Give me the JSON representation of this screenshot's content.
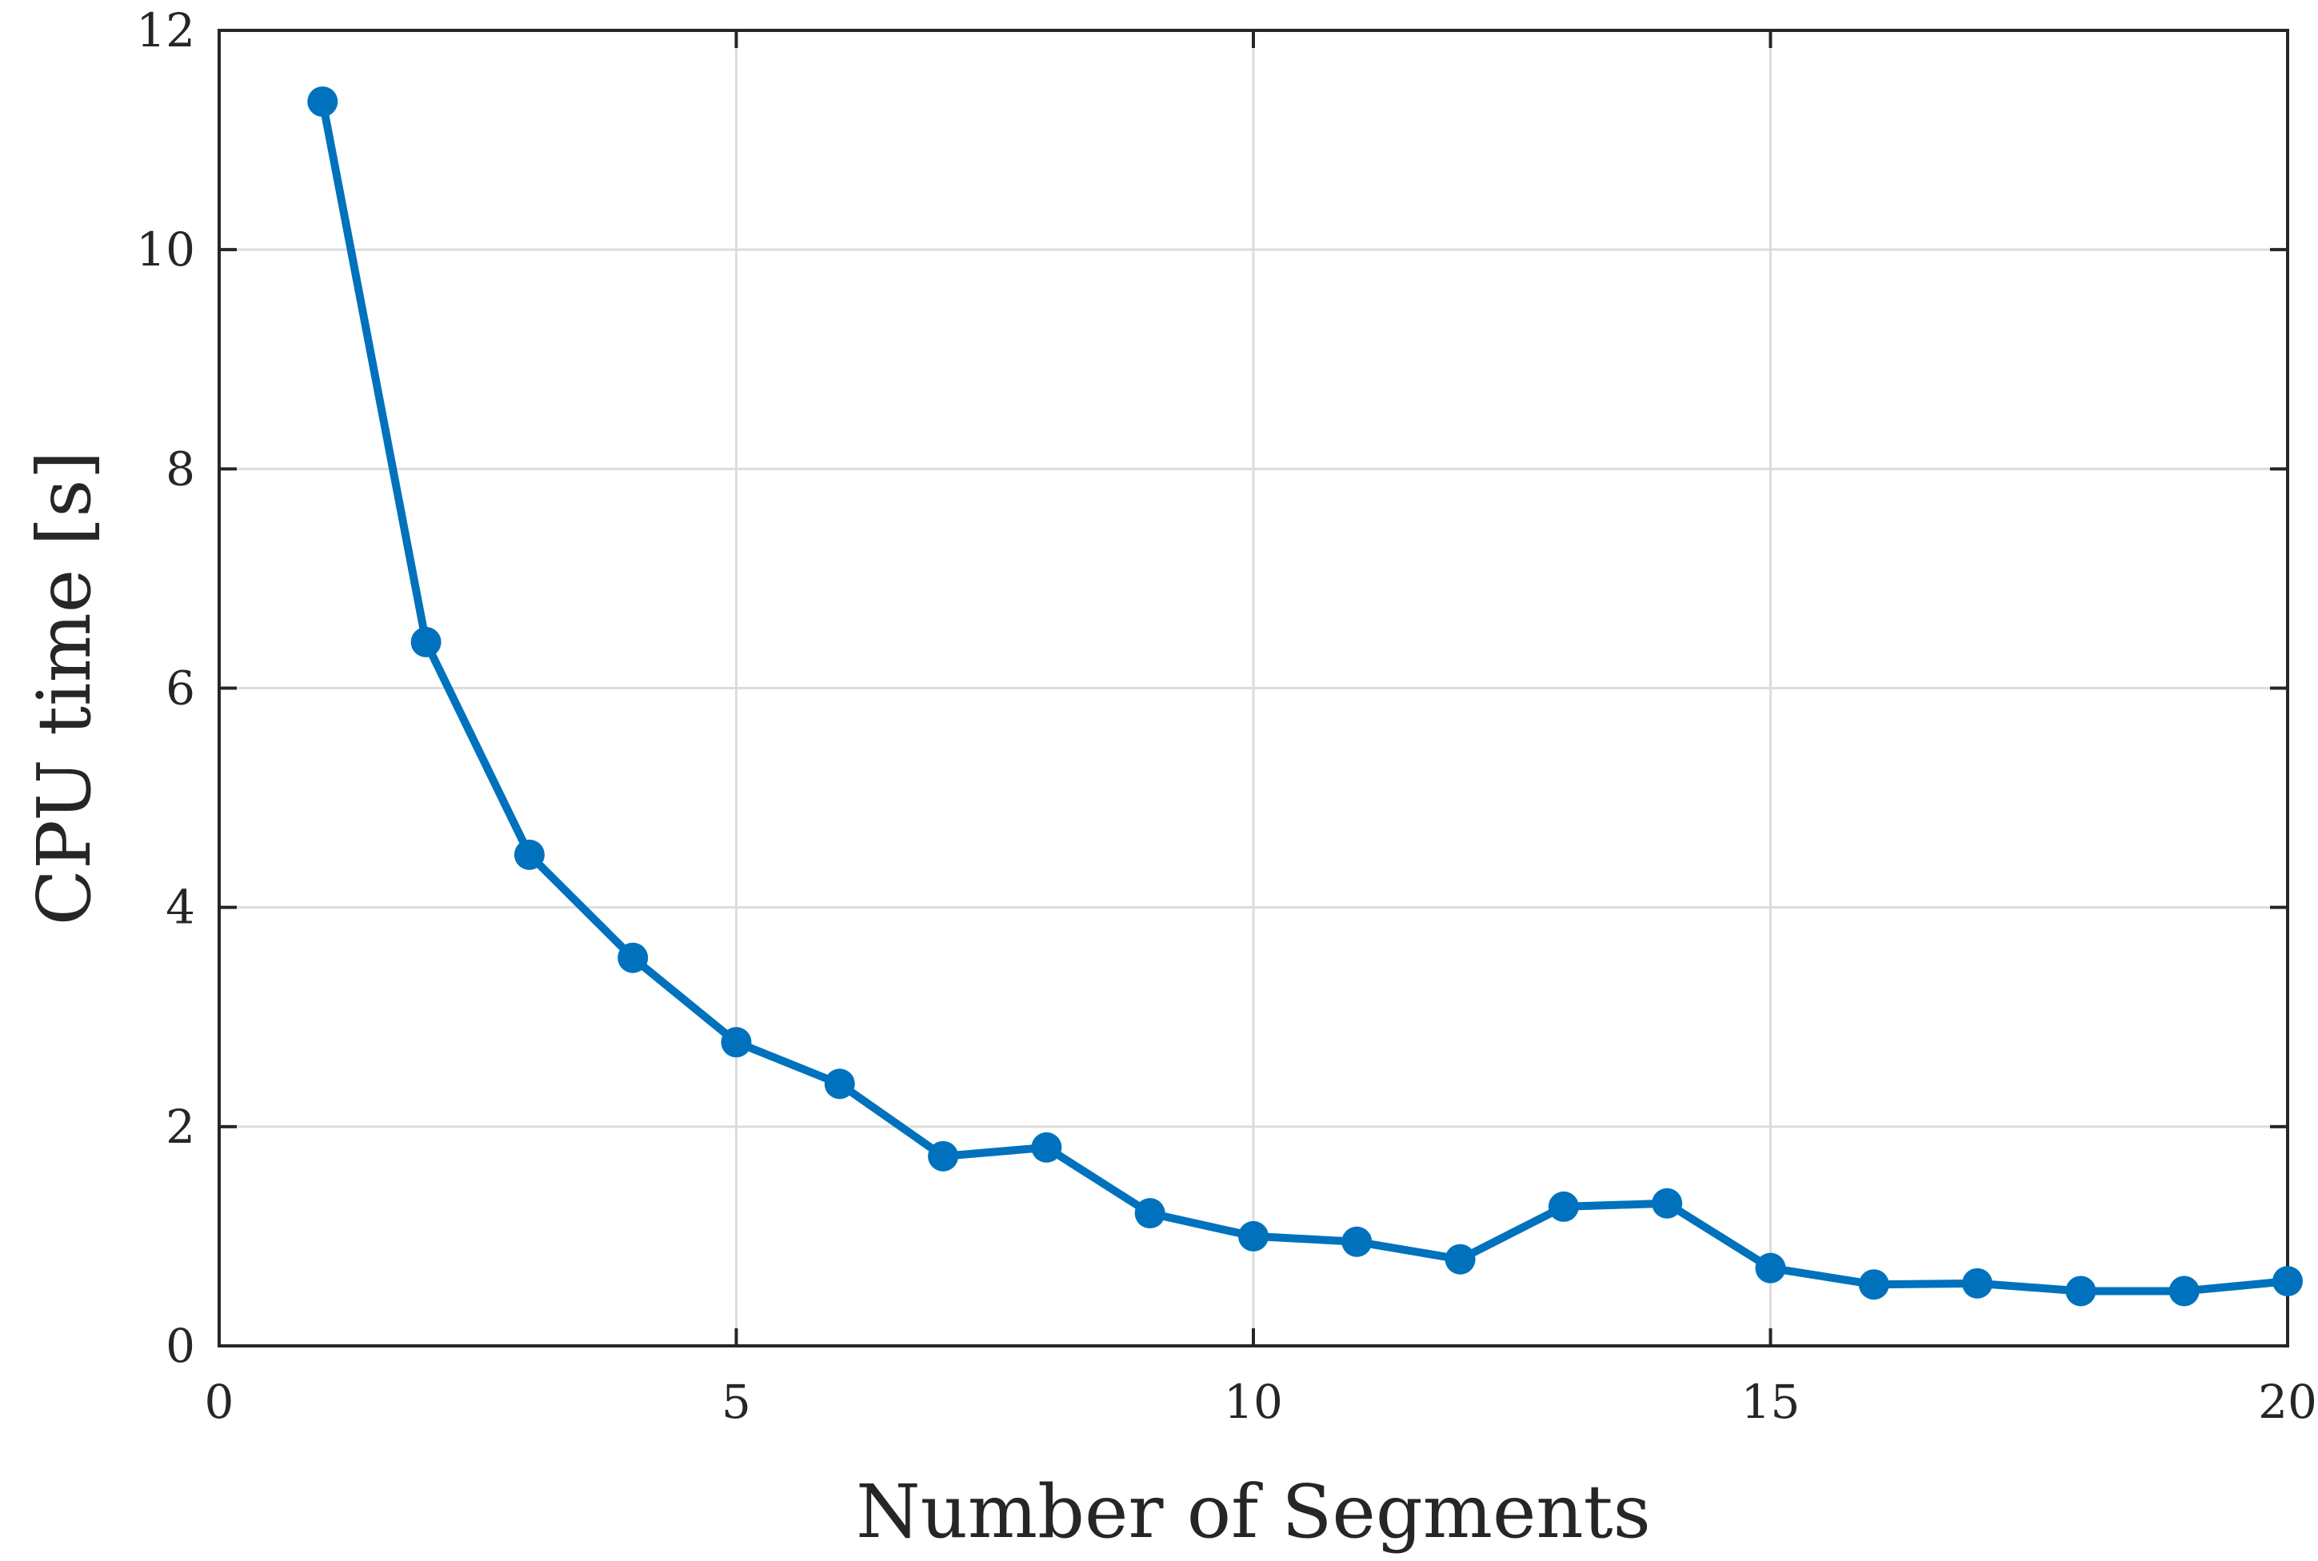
{
  "chart_data": {
    "type": "line",
    "xlabel": "Number of Segments",
    "ylabel": "CPU time [s]",
    "xlim": [
      0,
      20
    ],
    "ylim": [
      0,
      12
    ],
    "xticks": [
      0,
      5,
      10,
      15,
      20
    ],
    "yticks": [
      0,
      2,
      4,
      6,
      8,
      10,
      12
    ],
    "grid": true,
    "box": true,
    "series": [
      {
        "color": "#0072BD",
        "marker": "circle",
        "x": [
          1,
          2,
          3,
          4,
          5,
          6,
          7,
          8,
          9,
          10,
          11,
          12,
          13,
          14,
          15,
          16,
          17,
          18,
          19,
          20
        ],
        "values": [
          11.35,
          6.42,
          4.48,
          3.54,
          2.77,
          2.39,
          1.73,
          1.81,
          1.21,
          1.0,
          0.95,
          0.79,
          1.27,
          1.3,
          0.71,
          0.56,
          0.57,
          0.5,
          0.5,
          0.59
        ]
      }
    ]
  }
}
